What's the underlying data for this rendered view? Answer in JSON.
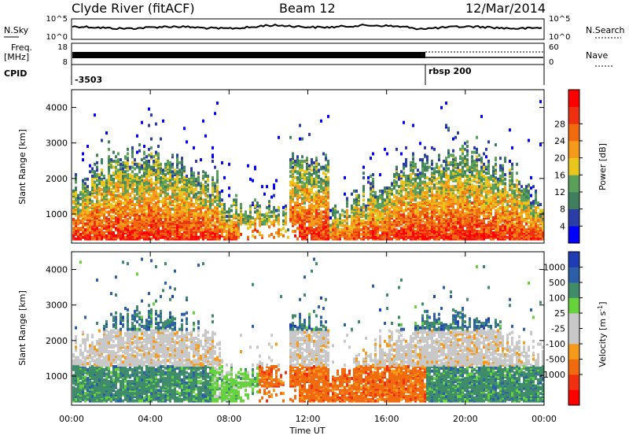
{
  "header": {
    "station": "Clyde River (fitACF)",
    "beam": "Beam 12",
    "date": "12/Mar/2014"
  },
  "top_panels": {
    "nsky_label": "N.Sky",
    "nsearch_label": "N.Search",
    "nsky_ticks": [
      "10^5",
      "10^0"
    ],
    "nsearch_ticks": [
      "10^5",
      "10^0"
    ],
    "freq_label": "Freq.",
    "freq_unit": "[MHz]",
    "freq_ticks": [
      "18",
      "8"
    ],
    "nave_label": "Nave",
    "nave_ticks": [
      "60",
      "0"
    ],
    "cpid_label": "CPID",
    "cpid_values": [
      "-3503",
      "rbsp 200"
    ]
  },
  "colors": {
    "power_scale": [
      "#0000ff",
      "#2b3ea8",
      "#3f7f5f",
      "#5aa05a",
      "#e8c61e",
      "#f59a1a",
      "#f06a10",
      "#ee3010",
      "#ff0000"
    ],
    "velocity_scale": [
      "#ff0000",
      "#ee3010",
      "#f06a10",
      "#f59a1a",
      "#c8c8c8",
      "#c8c8c8",
      "#66d23c",
      "#3f8c6a",
      "#2d5ea8",
      "#1e3cb4"
    ]
  },
  "chart_data": [
    {
      "type": "heatmap",
      "title": "Power",
      "xlabel": "Time UT",
      "ylabel": "Slant Range [km]",
      "x_ticks": [
        "00:00",
        "04:00",
        "08:00",
        "12:00",
        "16:00",
        "20:00",
        "00:00"
      ],
      "y_ticks": [
        "1000",
        "2000",
        "3000",
        "4000"
      ],
      "ylim": [
        180,
        4500
      ],
      "colorbar_label": "Power [dB]",
      "colorbar_ticks": [
        "4",
        "8",
        "12",
        "16",
        "20",
        "24",
        "28"
      ]
    },
    {
      "type": "heatmap",
      "title": "Velocity",
      "xlabel": "Time UT",
      "ylabel": "Slant Range [km]",
      "x_ticks": [
        "00:00",
        "04:00",
        "08:00",
        "12:00",
        "16:00",
        "20:00",
        "00:00"
      ],
      "y_ticks": [
        "1000",
        "2000",
        "3000",
        "4000"
      ],
      "ylim": [
        180,
        4500
      ],
      "colorbar_label": "Velocity [m s",
      "colorbar_label_sup": "-1",
      "colorbar_label_end": "]",
      "colorbar_ticks": [
        "1000",
        "500",
        "100",
        "25",
        "-25",
        "-100",
        "-500",
        "-1000"
      ]
    }
  ],
  "x_axis_title": "Time UT"
}
